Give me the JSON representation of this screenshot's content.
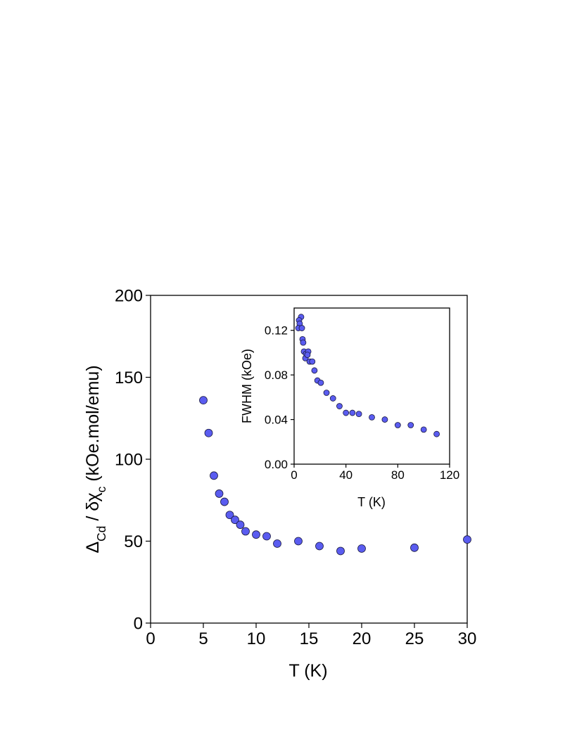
{
  "chart_data": [
    {
      "type": "scatter",
      "xlabel": "T (K)",
      "ylabel": [
        "Δ",
        "Cd",
        " / δχ",
        "c",
        "  (kOe.mol/emu)"
      ],
      "ylabel_sub": [
        false,
        true,
        false,
        true,
        false
      ],
      "x": [
        5,
        5.5,
        6,
        6.5,
        7,
        7.5,
        8,
        8.5,
        9,
        10,
        11,
        12,
        14,
        16,
        18,
        20,
        25,
        30
      ],
      "values": [
        136,
        116,
        90,
        79,
        74,
        66,
        63,
        60,
        56,
        54,
        53,
        48.5,
        50,
        47,
        44,
        45.5,
        46,
        51
      ],
      "color": "#5a5cf0",
      "xlim": [
        0,
        30
      ],
      "xticks": [
        0,
        5,
        10,
        15,
        20,
        25,
        30
      ],
      "ylim": [
        0,
        200
      ],
      "yticks": [
        0,
        50,
        100,
        150,
        200
      ]
    },
    {
      "type": "scatter",
      "xlabel": "T (K)",
      "ylabel": [
        "FWHM (kOe)"
      ],
      "ylabel_sub": [
        false
      ],
      "x": [
        5.4,
        3.8,
        4.3,
        3.3,
        6,
        6.5,
        7,
        7.6,
        9.2,
        8.7,
        10.9,
        10.3,
        12,
        14,
        15.7,
        18,
        20.6,
        25,
        30,
        35,
        40,
        45,
        50,
        60,
        70,
        80,
        90,
        100,
        110
      ],
      "values": [
        0.132,
        0.129,
        0.126,
        0.122,
        0.122,
        0.112,
        0.109,
        0.101,
        0.099,
        0.095,
        0.101,
        0.098,
        0.092,
        0.092,
        0.084,
        0.075,
        0.073,
        0.064,
        0.059,
        0.052,
        0.046,
        0.046,
        0.045,
        0.042,
        0.04,
        0.035,
        0.035,
        0.031,
        0.027
      ],
      "color": "#5a5cf0",
      "xlim": [
        0,
        120
      ],
      "xticks": [
        0,
        40,
        80,
        120
      ],
      "ylim": [
        0,
        0.14
      ],
      "yticks": [
        {
          "value": 0,
          "label": "0.00"
        },
        {
          "value": 0.04,
          "label": "0.04"
        },
        {
          "value": 0.08,
          "label": "0.08"
        },
        {
          "value": 0.12,
          "label": "0.12"
        }
      ]
    }
  ]
}
